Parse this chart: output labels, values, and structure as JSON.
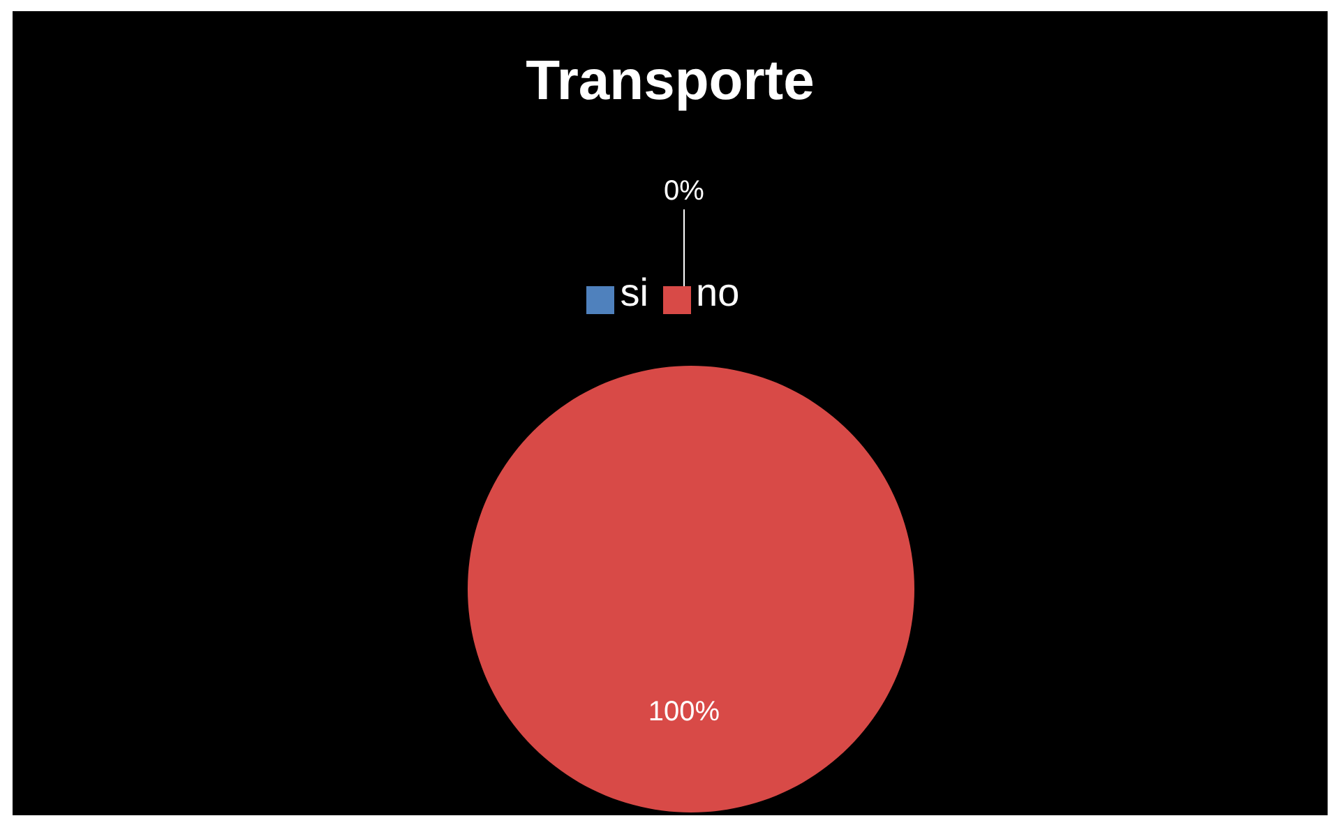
{
  "chart_data": {
    "type": "pie",
    "title": "Transporte",
    "categories": [
      "si",
      "no"
    ],
    "values": [
      0,
      100
    ],
    "colors": [
      "#4f81bd",
      "#d84a47"
    ],
    "value_labels": [
      "0%",
      "100%"
    ],
    "legend": "top"
  }
}
